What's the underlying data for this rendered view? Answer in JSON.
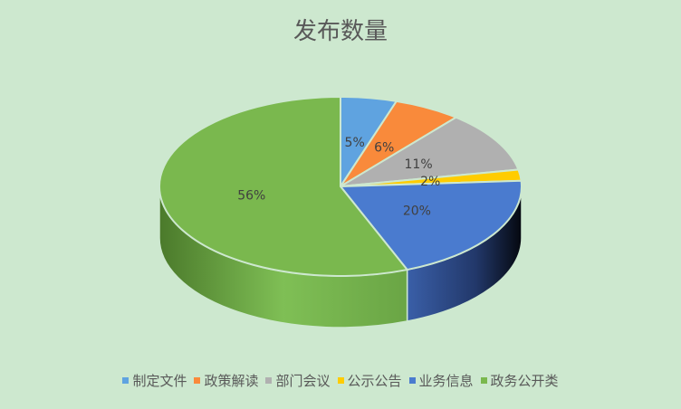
{
  "chart_data": {
    "type": "pie",
    "title": "发布数量",
    "style": "3d",
    "categories": [
      "制定文件",
      "政策解读",
      "部门会议",
      "公示公告",
      "业务信息",
      "政务公开类"
    ],
    "values": [
      5,
      6,
      11,
      2,
      20,
      56
    ],
    "labels": [
      "5%",
      "6%",
      "11%",
      "2%",
      "20%",
      "56%"
    ],
    "colors": [
      "#5fa3e0",
      "#f98a3b",
      "#b0b0b0",
      "#ffcc00",
      "#4a7bcf",
      "#7ab84e"
    ],
    "legend_position": "bottom"
  }
}
